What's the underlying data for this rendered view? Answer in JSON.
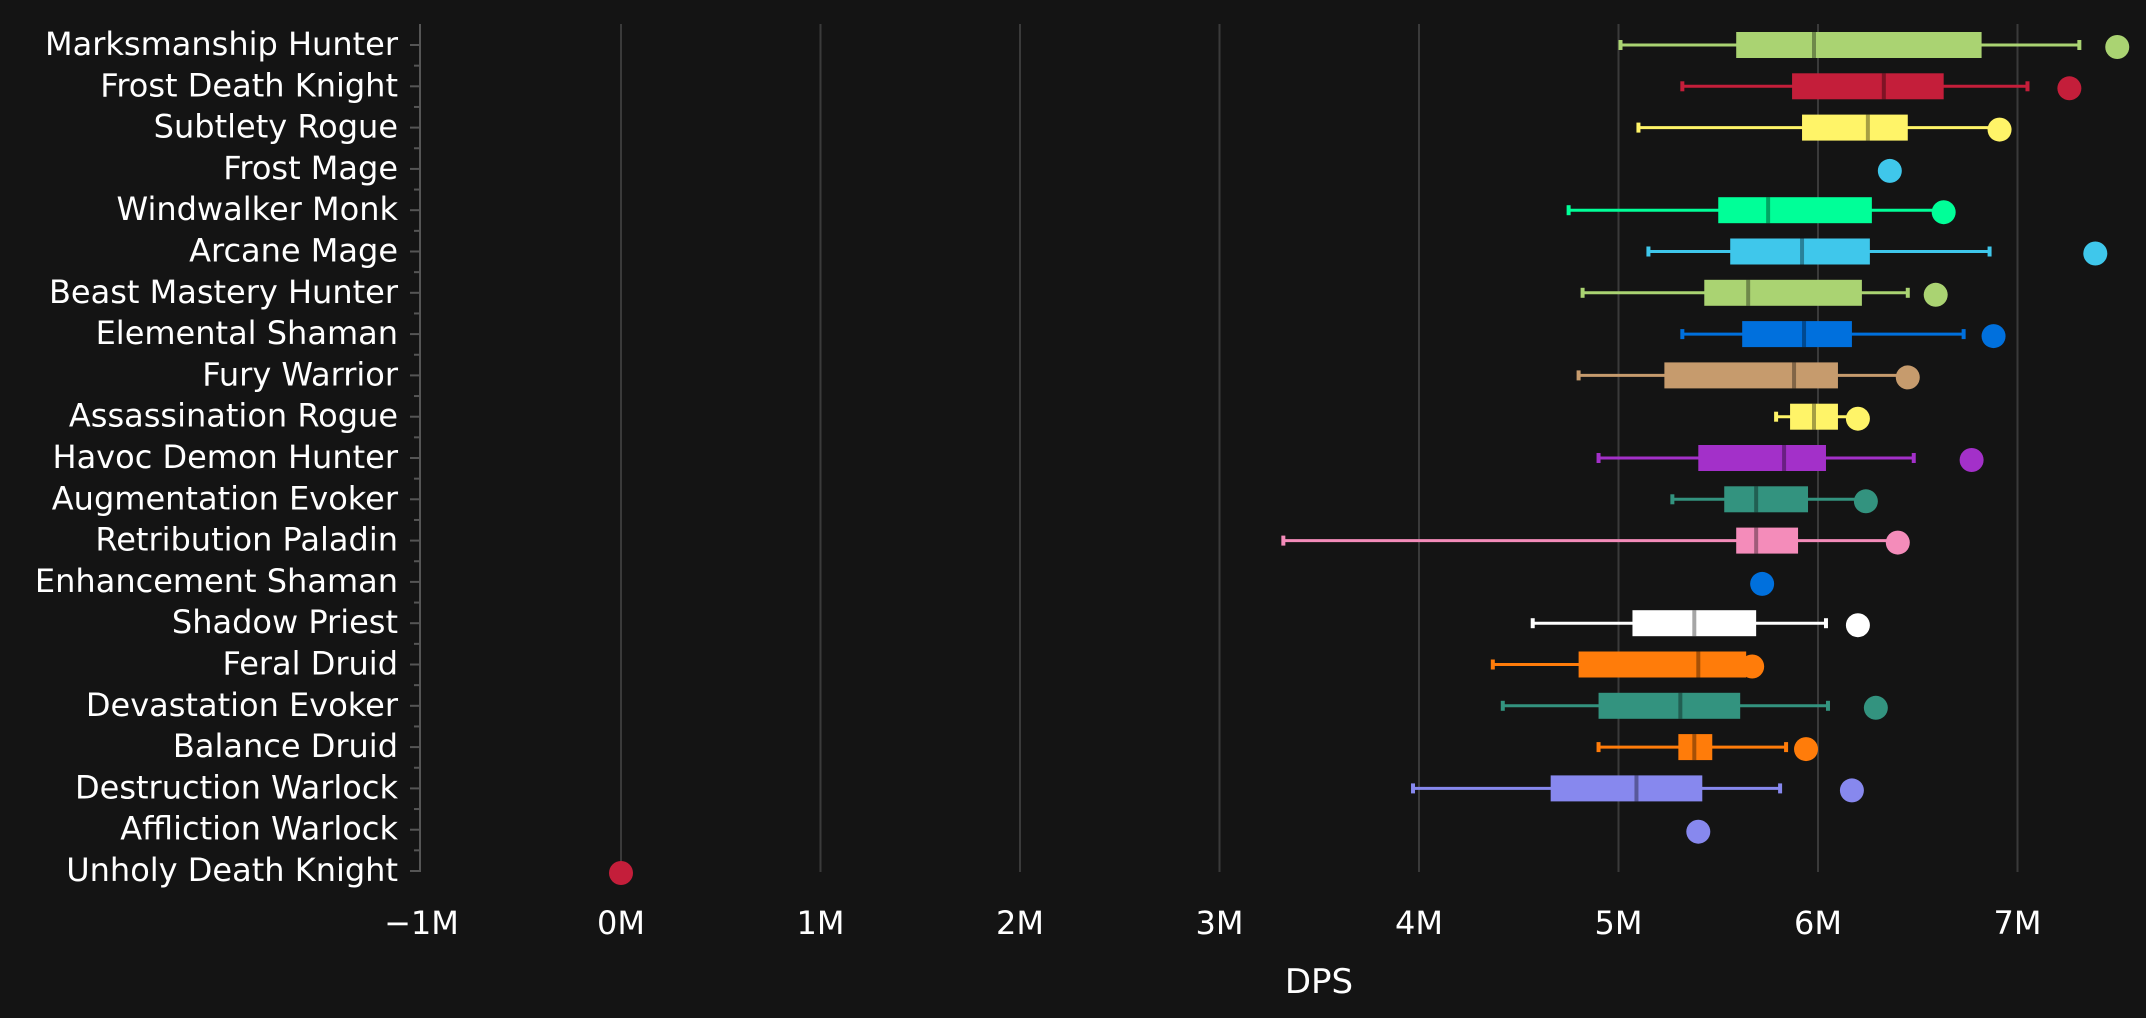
{
  "chart_data": {
    "type": "box",
    "title": "",
    "xlabel": "DPS",
    "ylabel": "",
    "xlim": [
      -1000000,
      7600000
    ],
    "x_ticks": [
      {
        "value": -1000000,
        "label": "−1M"
      },
      {
        "value": 0,
        "label": "0M"
      },
      {
        "value": 1000000,
        "label": "1M"
      },
      {
        "value": 2000000,
        "label": "2M"
      },
      {
        "value": 3000000,
        "label": "3M"
      },
      {
        "value": 4000000,
        "label": "4M"
      },
      {
        "value": 5000000,
        "label": "5M"
      },
      {
        "value": 6000000,
        "label": "6M"
      },
      {
        "value": 7000000,
        "label": "7M"
      }
    ],
    "grid": true,
    "series": [
      {
        "name": "Marksmanship Hunter",
        "color": "#aad372",
        "min": 5010000,
        "q1": 5590000,
        "median": 5980000,
        "q3": 6820000,
        "max": 7310000,
        "outlier": 7500000
      },
      {
        "name": "Frost Death Knight",
        "color": "#c41e3a",
        "min": 5320000,
        "q1": 5870000,
        "median": 6330000,
        "q3": 6630000,
        "max": 7050000,
        "outlier": 7260000
      },
      {
        "name": "Subtlety Rogue",
        "color": "#fff468",
        "min": 5100000,
        "q1": 5920000,
        "median": 6250000,
        "q3": 6450000,
        "max": 6880000,
        "outlier": 6910000
      },
      {
        "name": "Frost Mage",
        "color": "#3fc7eb",
        "min": null,
        "q1": null,
        "median": null,
        "q3": null,
        "max": null,
        "outlier": 6360000
      },
      {
        "name": "Windwalker Monk",
        "color": "#00ff98",
        "min": 4750000,
        "q1": 5500000,
        "median": 5750000,
        "q3": 6270000,
        "max": 6610000,
        "outlier": 6630000
      },
      {
        "name": "Arcane Mage",
        "color": "#3fc7eb",
        "min": 5150000,
        "q1": 5560000,
        "median": 5920000,
        "q3": 6260000,
        "max": 6860000,
        "outlier": 7390000
      },
      {
        "name": "Beast Mastery Hunter",
        "color": "#aad372",
        "min": 4820000,
        "q1": 5430000,
        "median": 5650000,
        "q3": 6220000,
        "max": 6450000,
        "outlier": 6590000
      },
      {
        "name": "Elemental Shaman",
        "color": "#0070dd",
        "min": 5320000,
        "q1": 5620000,
        "median": 5930000,
        "q3": 6170000,
        "max": 6730000,
        "outlier": 6880000
      },
      {
        "name": "Fury Warrior",
        "color": "#c69b6d",
        "min": 4800000,
        "q1": 5230000,
        "median": 5880000,
        "q3": 6100000,
        "max": 6420000,
        "outlier": 6450000
      },
      {
        "name": "Assassination Rogue",
        "color": "#fff468",
        "min": 5790000,
        "q1": 5860000,
        "median": 5980000,
        "q3": 6100000,
        "max": 6190000,
        "outlier": 6200000
      },
      {
        "name": "Havoc Demon Hunter",
        "color": "#a330c9",
        "min": 4900000,
        "q1": 5400000,
        "median": 5830000,
        "q3": 6040000,
        "max": 6480000,
        "outlier": 6770000
      },
      {
        "name": "Augmentation Evoker",
        "color": "#33937f",
        "min": 5270000,
        "q1": 5530000,
        "median": 5690000,
        "q3": 5950000,
        "max": 6220000,
        "outlier": 6240000
      },
      {
        "name": "Retribution Paladin",
        "color": "#f48cba",
        "min": 3320000,
        "q1": 5590000,
        "median": 5690000,
        "q3": 5900000,
        "max": 6370000,
        "outlier": 6400000
      },
      {
        "name": "Enhancement Shaman",
        "color": "#0070dd",
        "min": null,
        "q1": null,
        "median": null,
        "q3": null,
        "max": null,
        "outlier": 5720000
      },
      {
        "name": "Shadow Priest",
        "color": "#ffffff",
        "min": 4570000,
        "q1": 5070000,
        "median": 5380000,
        "q3": 5690000,
        "max": 6040000,
        "outlier": 6200000
      },
      {
        "name": "Feral Druid",
        "color": "#ff7c0a",
        "min": 4370000,
        "q1": 4800000,
        "median": 5400000,
        "q3": 5640000,
        "max": 5660000,
        "outlier": 5670000
      },
      {
        "name": "Devastation Evoker",
        "color": "#33937f",
        "min": 4420000,
        "q1": 4900000,
        "median": 5310000,
        "q3": 5610000,
        "max": 6050000,
        "outlier": 6290000
      },
      {
        "name": "Balance Druid",
        "color": "#ff7c0a",
        "min": 4900000,
        "q1": 5300000,
        "median": 5380000,
        "q3": 5470000,
        "max": 5840000,
        "outlier": 5940000
      },
      {
        "name": "Destruction Warlock",
        "color": "#8788ee",
        "min": 3970000,
        "q1": 4660000,
        "median": 5090000,
        "q3": 5420000,
        "max": 5810000,
        "outlier": 6170000
      },
      {
        "name": "Affliction Warlock",
        "color": "#8788ee",
        "min": null,
        "q1": null,
        "median": null,
        "q3": null,
        "max": null,
        "outlier": 5400000
      },
      {
        "name": "Unholy Death Knight",
        "color": "#c41e3a",
        "min": null,
        "q1": null,
        "median": null,
        "q3": null,
        "max": null,
        "outlier": 0
      }
    ]
  }
}
